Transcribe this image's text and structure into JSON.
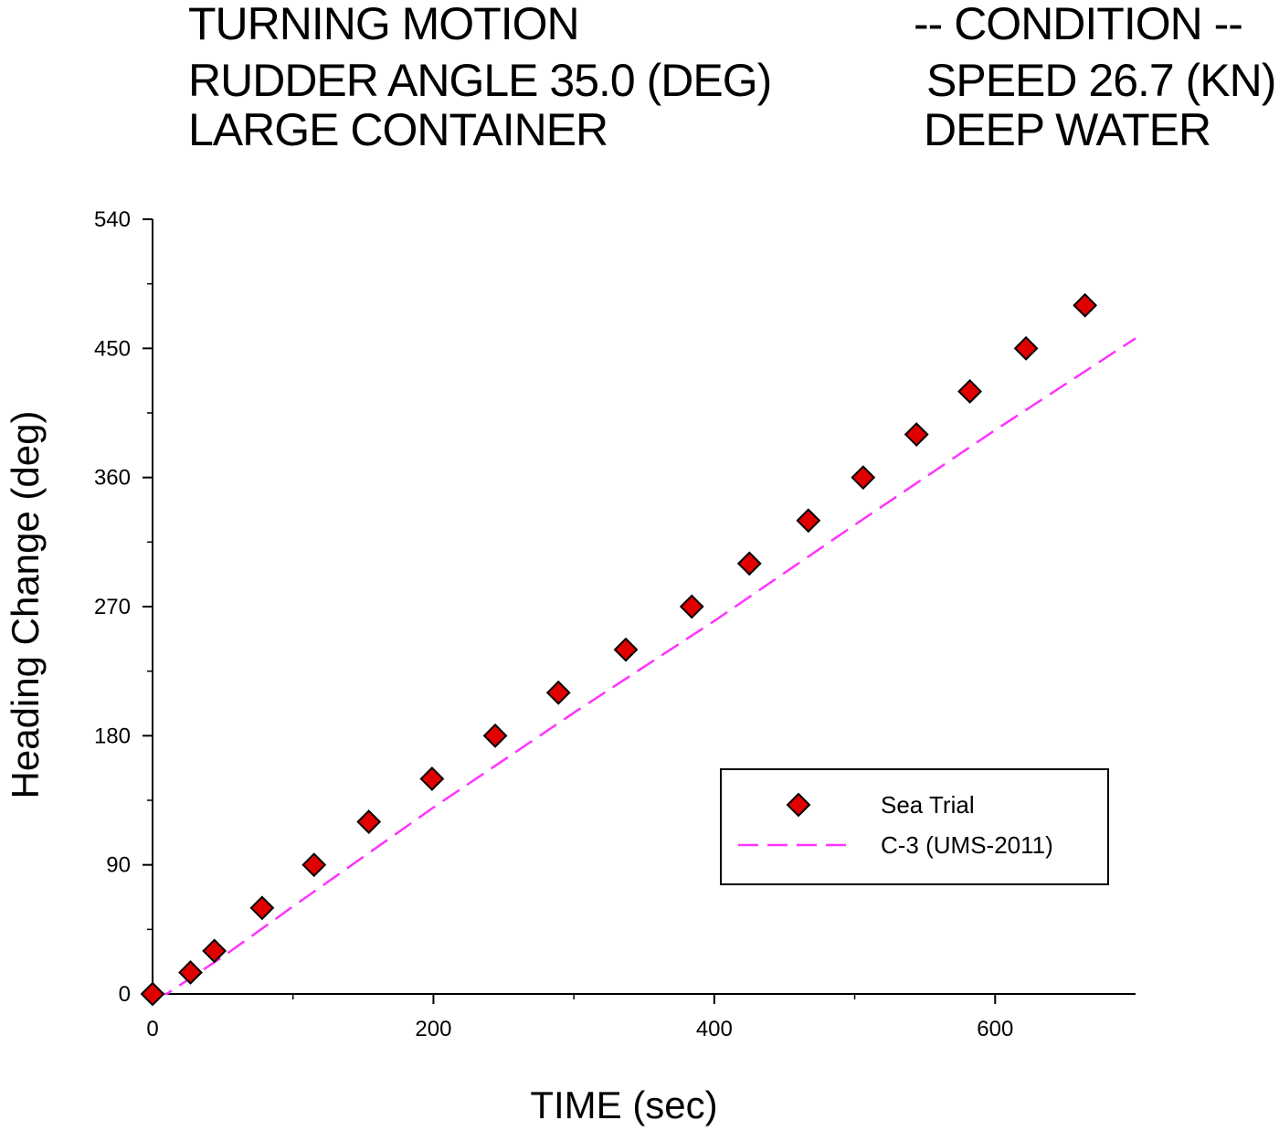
{
  "header": {
    "left_lines": [
      "TURNING MOTION",
      "RUDDER ANGLE  35.0 (DEG)",
      "LARGE CONTAINER"
    ],
    "right_lines": [
      "-- CONDITION --",
      "SPEED 26.7 (KN)",
      "DEEP WATER"
    ]
  },
  "chart_data": {
    "type": "scatter",
    "xlabel": "TIME (sec)",
    "ylabel": "Heading Change (deg)",
    "xlim": [
      0,
      700
    ],
    "ylim": [
      0,
      540
    ],
    "xticks": [
      0,
      200,
      400,
      600
    ],
    "yticks": [
      0,
      90,
      180,
      270,
      360,
      450,
      540
    ],
    "grid": false,
    "legend_position": "lower-right",
    "colors": {
      "marker_fill": "#e00000",
      "marker_edge": "#000000",
      "line": "#ff33ff",
      "axes": "#000000"
    },
    "series": [
      {
        "name": "Sea Trial",
        "kind": "scatter",
        "marker": "diamond",
        "x": [
          0,
          27,
          44,
          78,
          115,
          154,
          199,
          244,
          289,
          337,
          384,
          425,
          467,
          506,
          544,
          582,
          622,
          664
        ],
        "y": [
          0,
          15,
          30,
          60,
          90,
          120,
          150,
          180,
          210,
          240,
          270,
          300,
          330,
          360,
          390,
          420,
          450,
          480
        ]
      },
      {
        "name": "C-3 (UMS-2011)",
        "kind": "line",
        "style": "dashed",
        "x": [
          0,
          10,
          50,
          100,
          200,
          300,
          400,
          500,
          600,
          700
        ],
        "y": [
          -2,
          0,
          26,
          61,
          130,
          196,
          260,
          327,
          393,
          457
        ]
      }
    ]
  }
}
